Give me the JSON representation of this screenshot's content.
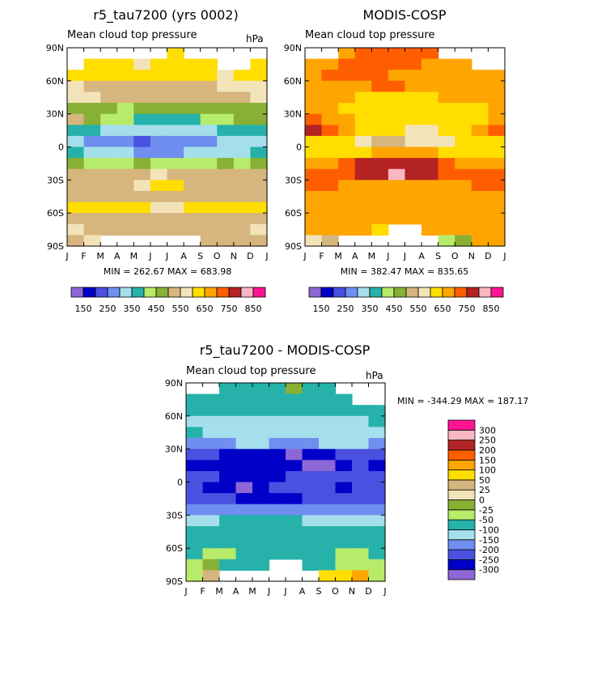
{
  "chart_data": [
    {
      "type": "heatmap",
      "title": "r5_tau7200 (yrs 0002)",
      "subtitle": "Mean cloud top pressure",
      "units": "hPa",
      "xlabel": "",
      "ylabel": "",
      "x": [
        "J",
        "F",
        "M",
        "A",
        "M",
        "J",
        "J",
        "A",
        "S",
        "O",
        "N",
        "D",
        "J"
      ],
      "y": [
        "90N",
        "60N",
        "30N",
        "0",
        "30S",
        "60S",
        "90S"
      ],
      "ylim": [
        -90,
        90
      ],
      "stats": "MIN = 262.67 MAX = 683.98",
      "levels": [
        150,
        200,
        250,
        300,
        350,
        400,
        450,
        500,
        550,
        600,
        650,
        700,
        750,
        800,
        850
      ],
      "colorbar_labels": [
        "150",
        "250",
        "350",
        "450",
        "550",
        "650",
        "750",
        "850"
      ],
      "colors": [
        "#8e67d6",
        "#0000c8",
        "#4a50e0",
        "#6f8ef0",
        "#a6dfec",
        "#26b2aa",
        "#b7ec6a",
        "#88b035",
        "#d6b57e",
        "#f3e3b8",
        "#ffde00",
        "#ffa500",
        "#ff5e00",
        "#b42323",
        "#f9b7c3",
        "#ff1493"
      ],
      "grid": [
        [
          -1,
          -1,
          -1,
          -1,
          -1,
          -1,
          10,
          -1,
          -1,
          -1,
          -1,
          -1
        ],
        [
          -1,
          10,
          10,
          10,
          9,
          10,
          10,
          10,
          10,
          -1,
          -1,
          10
        ],
        [
          10,
          10,
          10,
          10,
          10,
          10,
          10,
          10,
          10,
          9,
          10,
          10
        ],
        [
          9,
          8,
          8,
          8,
          8,
          8,
          8,
          8,
          8,
          9,
          9,
          9
        ],
        [
          9,
          9,
          8,
          8,
          8,
          8,
          8,
          8,
          8,
          8,
          8,
          9
        ],
        [
          7,
          7,
          7,
          6,
          7,
          7,
          7,
          7,
          7,
          7,
          7,
          7
        ],
        [
          8,
          7,
          6,
          6,
          5,
          5,
          5,
          5,
          6,
          6,
          7,
          7
        ],
        [
          5,
          5,
          4,
          4,
          4,
          4,
          4,
          4,
          4,
          5,
          5,
          5
        ],
        [
          4,
          3,
          3,
          3,
          2,
          3,
          3,
          3,
          3,
          4,
          4,
          4
        ],
        [
          5,
          4,
          4,
          4,
          3,
          3,
          3,
          4,
          4,
          4,
          4,
          5
        ],
        [
          7,
          6,
          6,
          6,
          7,
          6,
          6,
          6,
          6,
          7,
          6,
          7
        ],
        [
          8,
          8,
          8,
          8,
          8,
          9,
          8,
          8,
          8,
          8,
          8,
          8
        ],
        [
          8,
          8,
          8,
          8,
          9,
          10,
          10,
          8,
          8,
          8,
          8,
          8
        ],
        [
          8,
          8,
          8,
          8,
          8,
          8,
          8,
          8,
          8,
          8,
          8,
          8
        ],
        [
          10,
          10,
          10,
          10,
          10,
          9,
          9,
          10,
          10,
          10,
          10,
          10
        ],
        [
          8,
          8,
          8,
          8,
          8,
          8,
          8,
          8,
          8,
          8,
          8,
          8
        ],
        [
          9,
          8,
          8,
          8,
          8,
          8,
          8,
          8,
          8,
          8,
          8,
          9
        ],
        [
          8,
          9,
          -1,
          -1,
          -1,
          -1,
          -1,
          -1,
          8,
          8,
          8,
          8
        ]
      ]
    },
    {
      "type": "heatmap",
      "title": "MODIS-COSP",
      "subtitle": "Mean cloud top pressure",
      "units": "",
      "xlabel": "",
      "ylabel": "",
      "x": [
        "J",
        "F",
        "M",
        "A",
        "M",
        "J",
        "J",
        "A",
        "S",
        "O",
        "N",
        "D",
        "J"
      ],
      "y": [
        "90N",
        "60N",
        "30N",
        "0",
        "30S",
        "60S",
        "90S"
      ],
      "ylim": [
        -90,
        90
      ],
      "stats": "MIN = 382.47 MAX = 835.65",
      "levels": [
        150,
        200,
        250,
        300,
        350,
        400,
        450,
        500,
        550,
        600,
        650,
        700,
        750,
        800,
        850
      ],
      "colorbar_labels": [
        "150",
        "250",
        "350",
        "450",
        "550",
        "650",
        "750",
        "850"
      ],
      "colors": [
        "#8e67d6",
        "#0000c8",
        "#4a50e0",
        "#6f8ef0",
        "#a6dfec",
        "#26b2aa",
        "#b7ec6a",
        "#88b035",
        "#d6b57e",
        "#f3e3b8",
        "#ffde00",
        "#ffa500",
        "#ff5e00",
        "#b42323",
        "#f9b7c3",
        "#ff1493"
      ],
      "grid": [
        [
          -1,
          -1,
          11,
          12,
          12,
          12,
          12,
          12,
          -1,
          -1,
          -1,
          -1
        ],
        [
          11,
          11,
          12,
          12,
          12,
          12,
          12,
          11,
          11,
          11,
          -1,
          -1
        ],
        [
          11,
          12,
          12,
          12,
          12,
          11,
          11,
          11,
          11,
          11,
          11,
          11
        ],
        [
          11,
          11,
          11,
          11,
          12,
          12,
          11,
          11,
          11,
          11,
          11,
          11
        ],
        [
          11,
          11,
          11,
          10,
          10,
          10,
          10,
          10,
          11,
          11,
          11,
          11
        ],
        [
          11,
          11,
          10,
          10,
          10,
          10,
          10,
          10,
          10,
          10,
          10,
          11
        ],
        [
          12,
          11,
          11,
          10,
          10,
          10,
          10,
          10,
          10,
          10,
          10,
          11
        ],
        [
          13,
          12,
          11,
          10,
          10,
          10,
          9,
          9,
          10,
          10,
          11,
          12
        ],
        [
          10,
          10,
          10,
          9,
          8,
          8,
          9,
          9,
          9,
          10,
          10,
          10
        ],
        [
          10,
          10,
          10,
          10,
          11,
          11,
          11,
          11,
          10,
          10,
          10,
          10
        ],
        [
          11,
          11,
          12,
          13,
          13,
          13,
          13,
          13,
          12,
          11,
          11,
          11
        ],
        [
          12,
          12,
          12,
          13,
          13,
          14,
          13,
          13,
          12,
          12,
          12,
          12
        ],
        [
          12,
          12,
          11,
          11,
          11,
          11,
          11,
          11,
          11,
          11,
          12,
          12
        ],
        [
          11,
          11,
          11,
          11,
          11,
          11,
          11,
          11,
          11,
          11,
          11,
          11
        ],
        [
          11,
          11,
          11,
          11,
          11,
          11,
          11,
          11,
          11,
          11,
          11,
          11
        ],
        [
          11,
          11,
          11,
          11,
          11,
          11,
          11,
          11,
          11,
          11,
          11,
          11
        ],
        [
          11,
          11,
          11,
          11,
          10,
          -1,
          -1,
          11,
          11,
          11,
          11,
          11
        ],
        [
          9,
          8,
          -1,
          -1,
          -1,
          -1,
          -1,
          -1,
          6,
          7,
          11,
          11
        ]
      ]
    },
    {
      "type": "heatmap",
      "title": "r5_tau7200 - MODIS-COSP",
      "subtitle": "Mean cloud top pressure",
      "units": "hPa",
      "xlabel": "",
      "ylabel": "",
      "x": [
        "J",
        "F",
        "M",
        "A",
        "M",
        "J",
        "J",
        "A",
        "S",
        "O",
        "N",
        "D",
        "J"
      ],
      "y": [
        "90N",
        "60N",
        "30N",
        "0",
        "30S",
        "60S",
        "90S"
      ],
      "ylim": [
        -90,
        90
      ],
      "stats": "MIN = -344.29 MAX = 187.17",
      "levels": [
        -300,
        -250,
        -200,
        -150,
        -100,
        -50,
        -25,
        0,
        25,
        50,
        100,
        150,
        200,
        250,
        300
      ],
      "colorbar_labels": [
        "300",
        "250",
        "200",
        "150",
        "100",
        "50",
        "25",
        "0",
        "-25",
        "-50",
        "-100",
        "-150",
        "-200",
        "-250",
        "-300"
      ],
      "colors": [
        "#8e67d6",
        "#0000c8",
        "#4a50e0",
        "#6f8ef0",
        "#a6dfec",
        "#26b2aa",
        "#b7ec6a",
        "#88b035",
        "#f3e3b8",
        "#d6b57e",
        "#ffde00",
        "#ffa500",
        "#ff5e00",
        "#b42323",
        "#f9b7c3",
        "#ff1493"
      ],
      "grid": [
        [
          -1,
          -1,
          5,
          5,
          5,
          5,
          7,
          5,
          5,
          -1,
          -1,
          -1
        ],
        [
          5,
          5,
          5,
          5,
          5,
          5,
          5,
          5,
          5,
          5,
          -1,
          -1
        ],
        [
          5,
          5,
          5,
          5,
          5,
          5,
          5,
          5,
          5,
          5,
          5,
          5
        ],
        [
          4,
          4,
          4,
          4,
          4,
          4,
          4,
          4,
          4,
          4,
          4,
          5
        ],
        [
          5,
          4,
          4,
          4,
          4,
          4,
          4,
          4,
          4,
          4,
          4,
          4
        ],
        [
          3,
          3,
          3,
          4,
          4,
          3,
          3,
          3,
          4,
          4,
          4,
          3
        ],
        [
          2,
          2,
          1,
          1,
          1,
          1,
          0,
          1,
          1,
          2,
          2,
          2
        ],
        [
          1,
          1,
          1,
          1,
          1,
          1,
          1,
          0,
          0,
          1,
          2,
          1
        ],
        [
          2,
          2,
          1,
          1,
          1,
          1,
          2,
          2,
          2,
          2,
          2,
          2
        ],
        [
          2,
          1,
          1,
          0,
          1,
          2,
          2,
          2,
          2,
          1,
          2,
          2
        ],
        [
          2,
          2,
          2,
          1,
          1,
          1,
          1,
          2,
          2,
          2,
          2,
          2
        ],
        [
          3,
          3,
          3,
          3,
          3,
          3,
          3,
          3,
          3,
          3,
          3,
          3
        ],
        [
          4,
          4,
          5,
          5,
          5,
          5,
          5,
          4,
          4,
          4,
          4,
          4
        ],
        [
          5,
          5,
          5,
          5,
          5,
          5,
          5,
          5,
          5,
          5,
          5,
          5
        ],
        [
          5,
          5,
          5,
          5,
          5,
          5,
          5,
          5,
          5,
          5,
          5,
          5
        ],
        [
          5,
          6,
          6,
          5,
          5,
          5,
          5,
          5,
          5,
          6,
          6,
          5
        ],
        [
          6,
          7,
          5,
          5,
          5,
          -1,
          -1,
          5,
          5,
          6,
          6,
          6
        ],
        [
          6,
          9,
          -1,
          -1,
          -1,
          -1,
          -1,
          -1,
          10,
          10,
          11,
          6
        ]
      ]
    }
  ]
}
